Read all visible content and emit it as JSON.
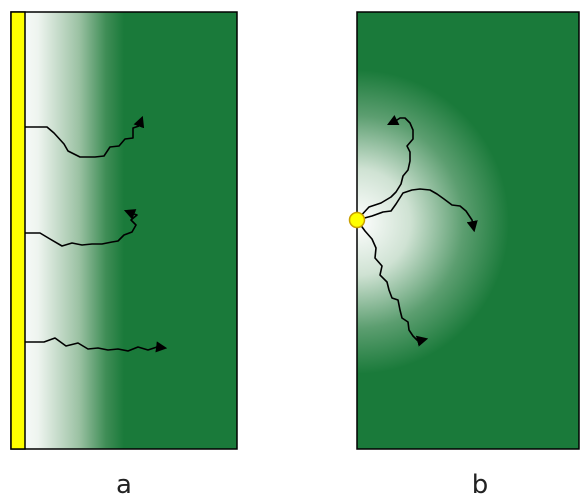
{
  "panels": [
    {
      "label": "a"
    },
    {
      "label": "b"
    }
  ],
  "colors": {
    "green": "#1a7a3a",
    "yellow": "#ffff00",
    "outline": "#000000",
    "path": "#000000",
    "background": "#ffffff"
  }
}
